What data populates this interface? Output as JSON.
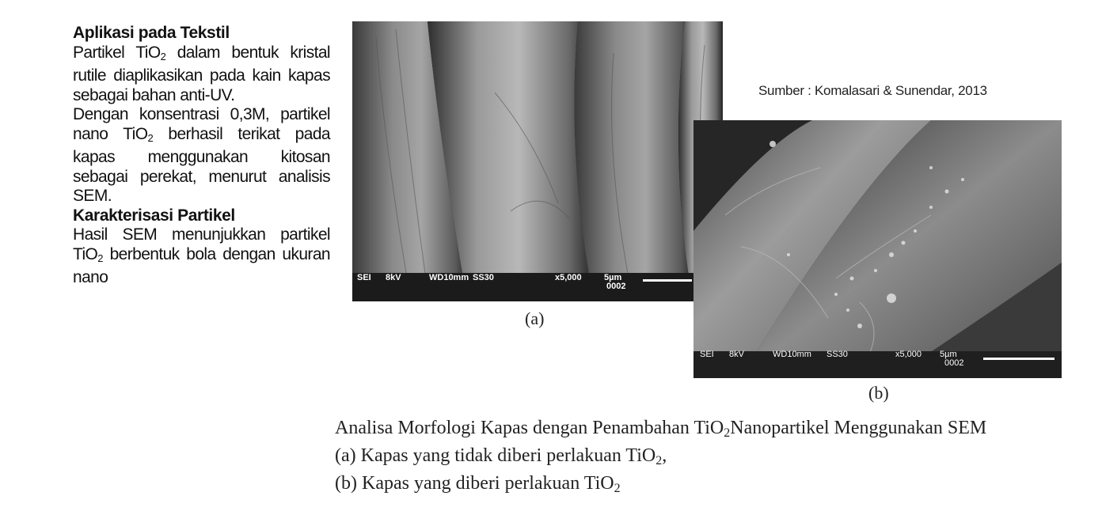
{
  "text_block": {
    "heading1": "Aplikasi pada Tekstil",
    "p1_a": "Partikel TiO",
    "p1_sub": "2",
    "p1_b": " dalam bentuk kristal rutile diaplikasikan pada kain kapas sebagai bahan anti-UV.",
    "p2_a": "Dengan konsentrasi 0,3M, partikel nano TiO",
    "p2_sub": "2",
    "p2_b": " berhasil terikat pada kapas menggunakan kitosan sebagai perekat, menurut analisis SEM.",
    "heading2": "Karakterisasi Partikel",
    "p3_a": "Hasil SEM menunjukkan partikel TiO",
    "p3_sub": "2",
    "p3_b": " berbentuk bola dengan ukuran nano"
  },
  "figure_a": {
    "label": "(a)",
    "meta": {
      "detector": "SEI",
      "voltage": "8kV",
      "wd": "WD10mm",
      "ss": "SS30",
      "mag": "x5,000",
      "scale": "5µm",
      "frame": "0002"
    }
  },
  "figure_b": {
    "label": "(b)",
    "meta": {
      "detector": "SEI",
      "voltage": "8kV",
      "wd": "WD10mm",
      "ss": "SS30",
      "mag": "x5,000",
      "scale": "5µm",
      "frame": "0002"
    }
  },
  "source": "Sumber : Komalasari & Sunendar, 2013",
  "caption": {
    "line1_a": "Analisa Morfologi Kapas dengan Penambahan TiO",
    "line1_sub": "2",
    "line1_b": "Nanopartikel Menggunakan SEM",
    "line2_a": "(a)  Kapas yang tidak diberi perlakuan TiO",
    "line2_sub": "2",
    "line2_b": ",",
    "line3_a": "(b)  Kapas yang diberi perlakuan TiO",
    "line3_sub": "2"
  }
}
